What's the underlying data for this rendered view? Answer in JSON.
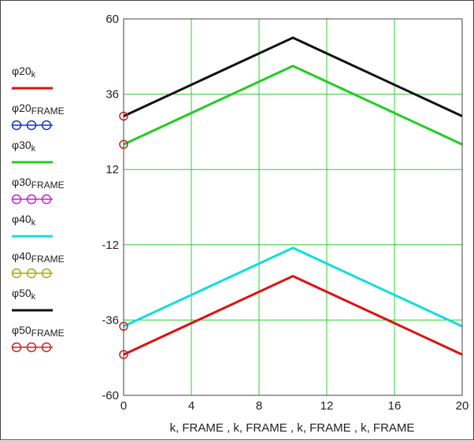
{
  "chart_data": {
    "type": "line",
    "title": "",
    "xlabel": "k, FRAME , k, FRAME , k, FRAME , k, FRAME",
    "ylabel": "",
    "xlim": [
      0,
      20
    ],
    "ylim": [
      -60,
      60
    ],
    "x_ticks": [
      "0",
      "4",
      "8",
      "12",
      "16",
      "20"
    ],
    "y_ticks": [
      "60",
      "36",
      "12",
      "-12",
      "-36",
      "-60"
    ],
    "grid": true,
    "grid_color": "#33cc33",
    "legend_position": "left",
    "series": [
      {
        "name": "φ20",
        "sub": "k",
        "kind": "line",
        "color": "#dd1111",
        "x": [
          0,
          10,
          20
        ],
        "y": [
          -47,
          -22,
          -47
        ]
      },
      {
        "name": "φ20",
        "sub": "FRAME",
        "kind": "markers",
        "color": "#1133cc",
        "x": [],
        "y": []
      },
      {
        "name": "φ30",
        "sub": "k",
        "kind": "line",
        "color": "#22cc22",
        "x": [
          0,
          10,
          20
        ],
        "y": [
          20,
          45,
          20
        ]
      },
      {
        "name": "φ30",
        "sub": "FRAME",
        "kind": "markers",
        "color": "#cc22cc",
        "x": [],
        "y": []
      },
      {
        "name": "φ40",
        "sub": "k",
        "kind": "line",
        "color": "#11dddd",
        "x": [
          0,
          10,
          20
        ],
        "y": [
          -38,
          -13,
          -38
        ]
      },
      {
        "name": "φ40",
        "sub": "FRAME",
        "kind": "markers",
        "color": "#aaaa11",
        "x": [],
        "y": []
      },
      {
        "name": "φ50",
        "sub": "k",
        "kind": "line",
        "color": "#111111",
        "x": [
          0,
          10,
          20
        ],
        "y": [
          29,
          54,
          29
        ]
      },
      {
        "name": "φ50",
        "sub": "FRAME",
        "kind": "markers",
        "color": "#cc2222",
        "x": [
          0,
          0,
          0,
          0
        ],
        "y": [
          29,
          20,
          -38,
          -47
        ]
      }
    ]
  }
}
